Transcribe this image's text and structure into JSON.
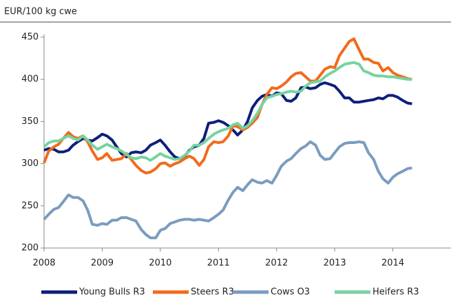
{
  "chart_data": {
    "type": "line",
    "y_label": "EUR/100 kg cwe",
    "x": [
      2008.0,
      2008.08,
      2008.17,
      2008.25,
      2008.33,
      2008.42,
      2008.5,
      2008.58,
      2008.67,
      2008.75,
      2008.83,
      2008.92,
      2009.0,
      2009.08,
      2009.17,
      2009.25,
      2009.33,
      2009.42,
      2009.5,
      2009.58,
      2009.67,
      2009.75,
      2009.83,
      2009.92,
      2010.0,
      2010.08,
      2010.17,
      2010.25,
      2010.33,
      2010.42,
      2010.5,
      2010.58,
      2010.67,
      2010.75,
      2010.83,
      2010.92,
      2011.0,
      2011.08,
      2011.17,
      2011.25,
      2011.33,
      2011.42,
      2011.5,
      2011.58,
      2011.67,
      2011.75,
      2011.83,
      2011.92,
      2012.0,
      2012.08,
      2012.17,
      2012.25,
      2012.33,
      2012.42,
      2012.5,
      2012.58,
      2012.67,
      2012.75,
      2012.83,
      2012.92,
      2013.0,
      2013.08,
      2013.17,
      2013.25,
      2013.33,
      2013.42,
      2013.5,
      2013.58,
      2013.67,
      2013.75,
      2013.83,
      2013.92,
      2014.0,
      2014.08,
      2014.17,
      2014.25,
      2014.33
    ],
    "series": [
      {
        "name": "Young Bulls R3",
        "color": "#0d1f7a",
        "values": [
          316,
          318,
          317,
          314,
          314,
          316,
          322,
          326,
          330,
          328,
          327,
          331,
          335,
          333,
          328,
          320,
          312,
          308,
          313,
          314,
          313,
          316,
          322,
          325,
          328,
          322,
          314,
          308,
          306,
          309,
          316,
          320,
          322,
          330,
          348,
          349,
          351,
          349,
          345,
          340,
          334,
          340,
          350,
          366,
          375,
          380,
          382,
          380,
          384,
          383,
          375,
          374,
          378,
          390,
          391,
          389,
          390,
          394,
          396,
          394,
          392,
          386,
          378,
          378,
          373,
          373,
          374,
          375,
          376,
          378,
          377,
          381,
          381,
          379,
          375,
          372,
          371
        ]
      },
      {
        "name": "Steers R3",
        "color": "#f26a1b",
        "values": [
          301,
          315,
          320,
          323,
          330,
          337,
          332,
          330,
          333,
          326,
          315,
          305,
          307,
          312,
          304,
          305,
          306,
          312,
          305,
          298,
          292,
          289,
          290,
          294,
          300,
          301,
          297,
          300,
          302,
          306,
          309,
          306,
          298,
          305,
          320,
          326,
          325,
          326,
          333,
          345,
          344,
          340,
          343,
          348,
          355,
          370,
          382,
          390,
          389,
          392,
          397,
          403,
          407,
          408,
          403,
          398,
          398,
          405,
          412,
          415,
          414,
          428,
          437,
          445,
          448,
          435,
          424,
          424,
          420,
          419,
          410,
          414,
          408,
          405,
          403,
          401,
          400
        ]
      },
      {
        "name": "Cows O3",
        "color": "#7a9cbf",
        "values": [
          234,
          240,
          246,
          248,
          255,
          263,
          260,
          260,
          256,
          245,
          228,
          227,
          229,
          228,
          233,
          233,
          236,
          236,
          234,
          232,
          222,
          216,
          212,
          212,
          221,
          223,
          229,
          231,
          233,
          234,
          234,
          233,
          234,
          233,
          232,
          236,
          240,
          245,
          257,
          266,
          272,
          268,
          275,
          281,
          278,
          277,
          280,
          277,
          286,
          297,
          303,
          306,
          312,
          318,
          321,
          326,
          322,
          310,
          305,
          306,
          313,
          320,
          324,
          325,
          325,
          326,
          325,
          313,
          305,
          291,
          282,
          277,
          284,
          288,
          291,
          294,
          295
        ]
      },
      {
        "name": "Heifers R3",
        "color": "#76d3a1",
        "values": [
          320,
          325,
          327,
          327,
          330,
          333,
          330,
          328,
          333,
          328,
          322,
          317,
          320,
          323,
          320,
          318,
          315,
          311,
          307,
          306,
          308,
          307,
          304,
          308,
          312,
          309,
          307,
          305,
          306,
          310,
          315,
          322,
          322,
          325,
          330,
          335,
          338,
          340,
          342,
          346,
          348,
          342,
          345,
          351,
          360,
          370,
          378,
          380,
          382,
          383,
          385,
          386,
          385,
          386,
          392,
          396,
          397,
          398,
          403,
          407,
          410,
          414,
          418,
          419,
          420,
          418,
          410,
          408,
          405,
          404,
          404,
          403,
          403,
          402,
          401,
          400,
          400
        ]
      }
    ],
    "xlim": [
      2008,
      2015
    ],
    "xticks": [
      2008,
      2009,
      2010,
      2011,
      2012,
      2013,
      2014
    ],
    "ylim": [
      200,
      450
    ],
    "yticks": [
      200,
      250,
      300,
      350,
      400,
      450
    ]
  }
}
